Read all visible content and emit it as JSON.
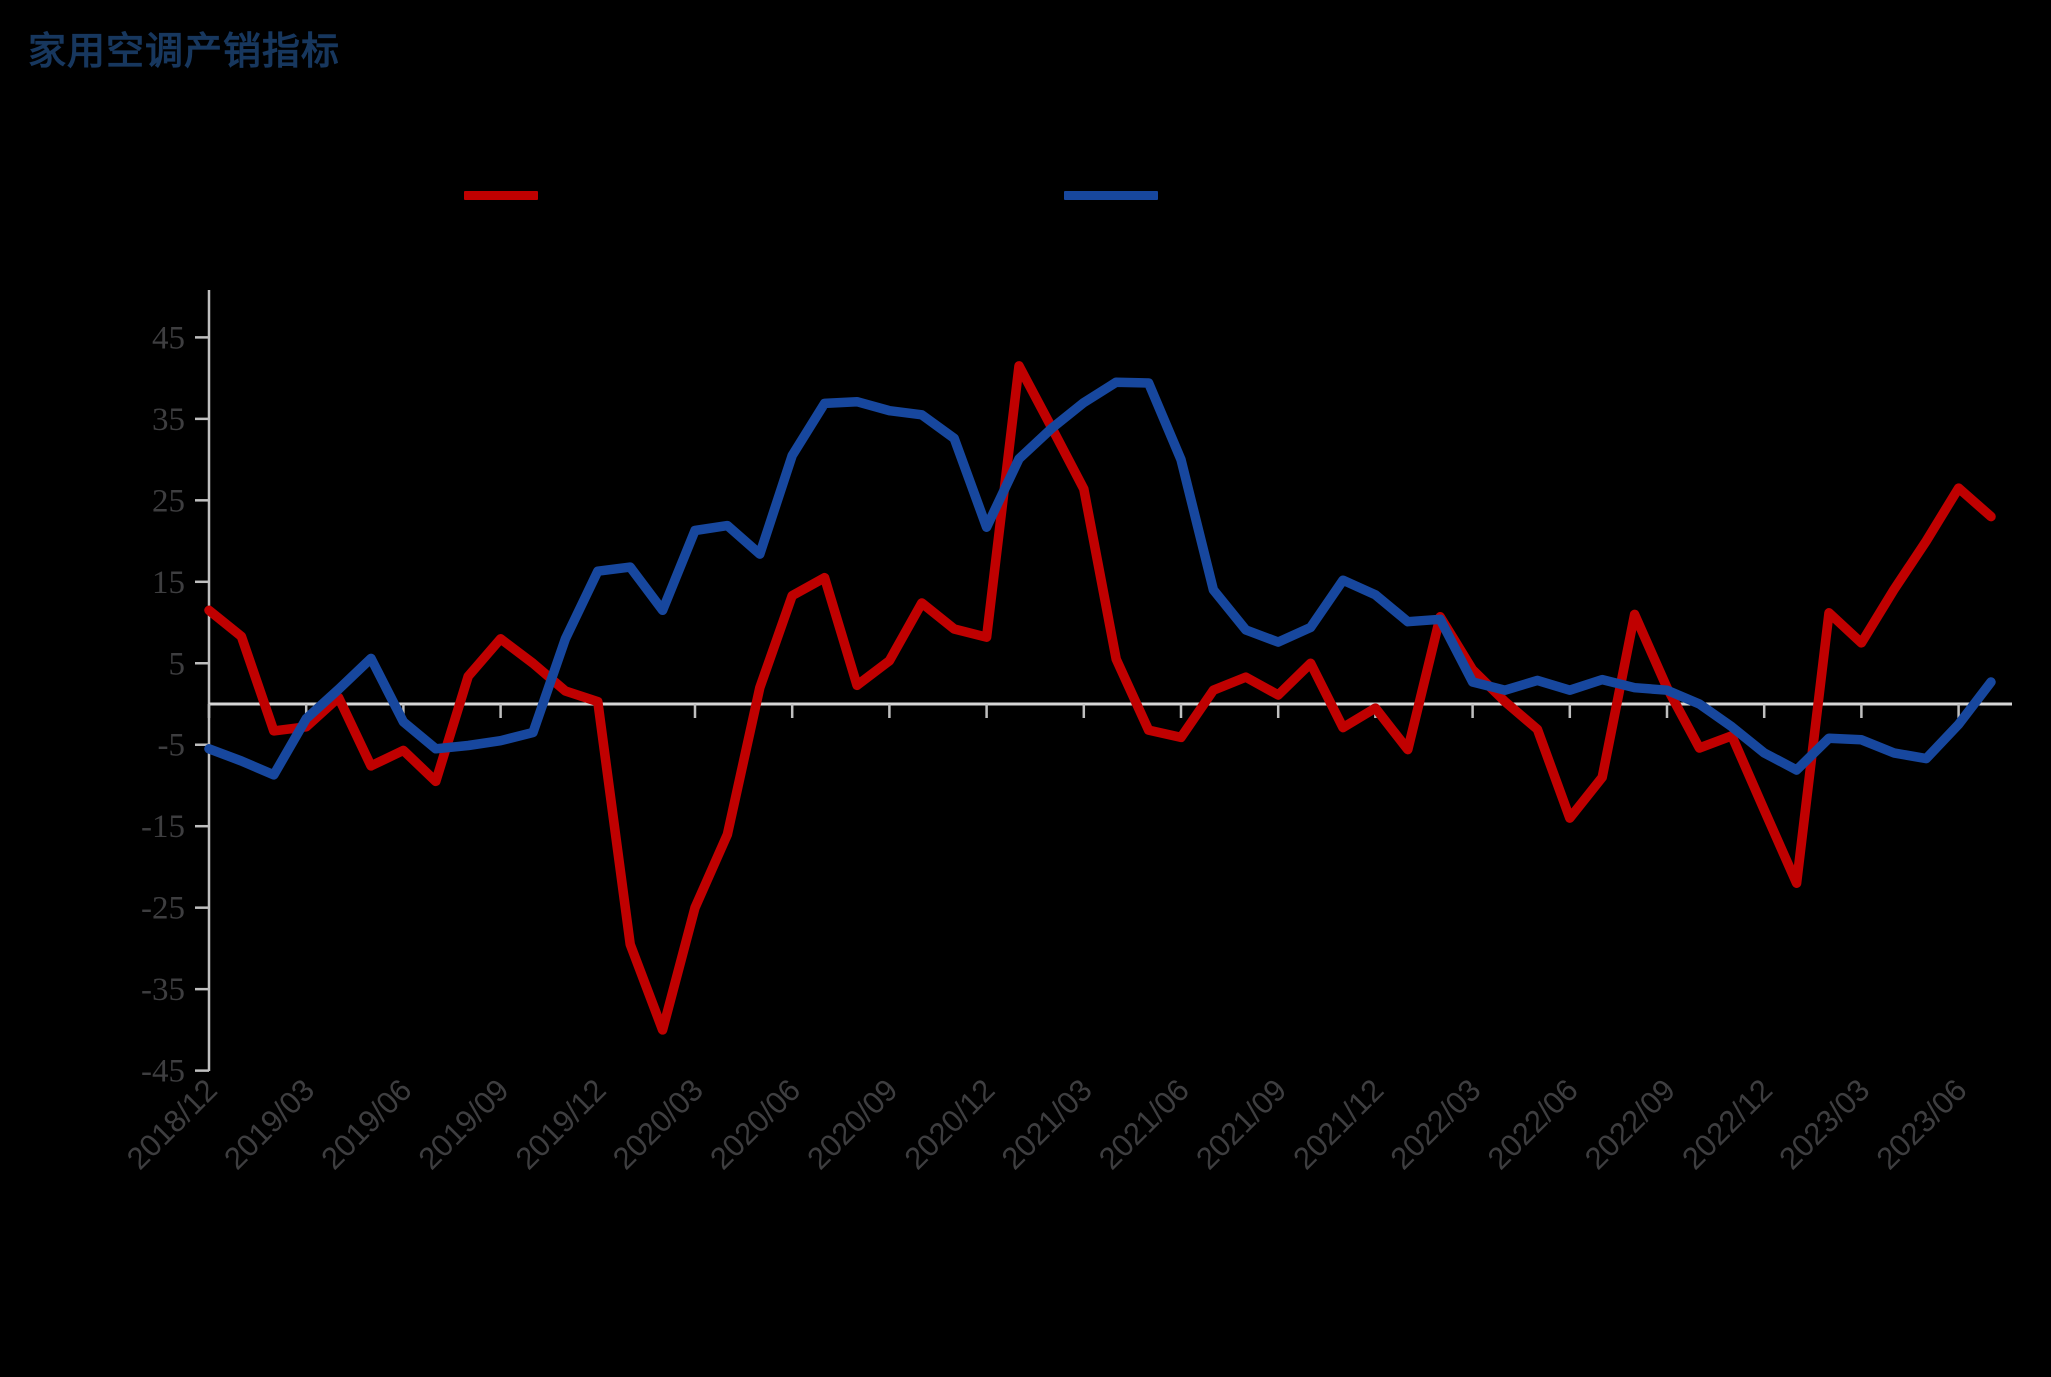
{
  "title": "家用空调产销指标",
  "colors": {
    "background": "#000000",
    "title": "#17375E",
    "axis_line": "#BFBFBF",
    "zero_line": "#D6D6D6",
    "tick_label": "#3E3E40",
    "red_series": "#C00000",
    "blue_series": "#17479E"
  },
  "legend": {
    "position": "top",
    "items": [
      {
        "name": "red-series-swatch",
        "label": "",
        "color": "#C00000"
      },
      {
        "name": "blue-series-swatch",
        "label": "",
        "color": "#17479E"
      }
    ]
  },
  "chart_data": {
    "type": "line",
    "title": "家用空调产销指标",
    "xlabel": "",
    "ylabel": "",
    "ylim": [
      -45,
      45
    ],
    "y_ticks": [
      45,
      35,
      25,
      15,
      5,
      -5,
      -15,
      -25,
      -35,
      -45
    ],
    "grid": "zero-line-only",
    "legend_position": "top",
    "x": [
      "2018/12",
      "2019/01",
      "2019/02",
      "2019/03",
      "2019/04",
      "2019/05",
      "2019/06",
      "2019/07",
      "2019/08",
      "2019/09",
      "2019/10",
      "2019/11",
      "2019/12",
      "2020/01",
      "2020/02",
      "2020/03",
      "2020/04",
      "2020/05",
      "2020/06",
      "2020/07",
      "2020/08",
      "2020/09",
      "2020/10",
      "2020/11",
      "2020/12",
      "2021/01",
      "2021/02",
      "2021/03",
      "2021/04",
      "2021/05",
      "2021/06",
      "2021/07",
      "2021/08",
      "2021/09",
      "2021/10",
      "2021/11",
      "2021/12",
      "2022/01",
      "2022/02",
      "2022/03",
      "2022/04",
      "2022/05",
      "2022/06",
      "2022/07",
      "2022/08",
      "2022/09",
      "2022/10",
      "2022/11",
      "2022/12",
      "2023/01",
      "2023/02",
      "2023/03",
      "2023/04",
      "2023/05",
      "2023/06",
      "2023/07"
    ],
    "x_tick_labels": [
      "2018/12",
      "2019/03",
      "2019/06",
      "2019/09",
      "2019/12",
      "2020/03",
      "2020/06",
      "2020/09",
      "2020/12",
      "2021/03",
      "2021/06",
      "2021/09",
      "2021/12",
      "2022/03",
      "2022/06",
      "2022/09",
      "2022/12",
      "2023/03",
      "2023/06"
    ],
    "series": [
      {
        "name": "red_series",
        "label": "",
        "color": "#C00000",
        "values": [
          11.5,
          8.3,
          -3.3,
          -2.8,
          0.8,
          -7.6,
          -5.7,
          -9.5,
          3.4,
          8,
          5,
          1.6,
          0.3,
          -29.5,
          -40,
          -25,
          -16,
          2,
          13.3,
          15.5,
          2.3,
          5.3,
          12.4,
          9.2,
          8.2,
          41.5,
          34,
          26.4,
          5.5,
          -3.2,
          -4.1,
          1.7,
          3.3,
          1.1,
          5.0,
          -2.9,
          -0.5,
          -5.6,
          10.7,
          4.2,
          0.3,
          -3.1,
          -14,
          -9,
          11,
          2,
          -5.4,
          -3.9,
          -13,
          -22,
          11.2,
          7.5,
          14,
          20,
          26.5,
          23
        ]
      },
      {
        "name": "blue_series",
        "label": "",
        "color": "#17479E",
        "values": [
          -5.5,
          -7,
          -8.7,
          -1.8,
          1.8,
          5.6,
          -2.2,
          -5.5,
          -5.1,
          -4.5,
          -3.5,
          8,
          16.3,
          16.8,
          11.5,
          21.3,
          21.9,
          18.4,
          30.5,
          36.9,
          37.1,
          36,
          35.5,
          32.6,
          21.7,
          30.1,
          33.8,
          37,
          39.5,
          39.4,
          30,
          14,
          9.1,
          7.6,
          9.4,
          15.2,
          13.4,
          10.1,
          10.4,
          2.7,
          1.7,
          2.9,
          1.7,
          3.0,
          2.0,
          1.7,
          0,
          -2.8,
          -6,
          -8.1,
          -4.2,
          -4.4,
          -6.0,
          -6.7,
          -2.5,
          2.7
        ]
      }
    ]
  }
}
